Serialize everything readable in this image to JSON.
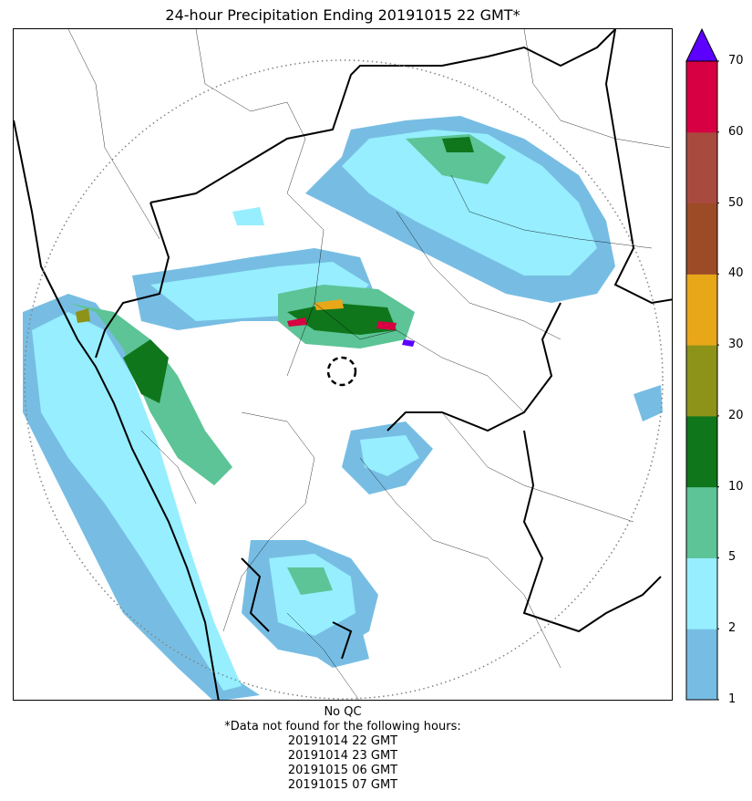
{
  "title": "24-hour Precipitation Ending 20191015 22 GMT*",
  "colorbar": {
    "levels": [
      1,
      2,
      5,
      10,
      20,
      30,
      40,
      50,
      60,
      70
    ],
    "tick_labels": [
      "1",
      "2",
      "5",
      "10",
      "20",
      "30",
      "40",
      "50",
      "60",
      "70"
    ],
    "colors": [
      "#77bde3",
      "#96eeff",
      "#5cc496",
      "#0f761b",
      "#8c9318",
      "#e8a719",
      "#9c4b26",
      "#a94a3f",
      "#d60042"
    ],
    "extend_color": "#5c00ff",
    "units": ""
  },
  "map": {
    "radar_range_ring": "dotted",
    "radar_site_marker": "dashed-circle",
    "border_color": "#000000"
  },
  "footer": {
    "qc_status": "No QC",
    "missing_note": "*Data not found for the following hours:",
    "missing_hours": [
      "20191014 22 GMT",
      "20191014 23 GMT",
      "20191015 06 GMT",
      "20191015 07 GMT"
    ]
  }
}
